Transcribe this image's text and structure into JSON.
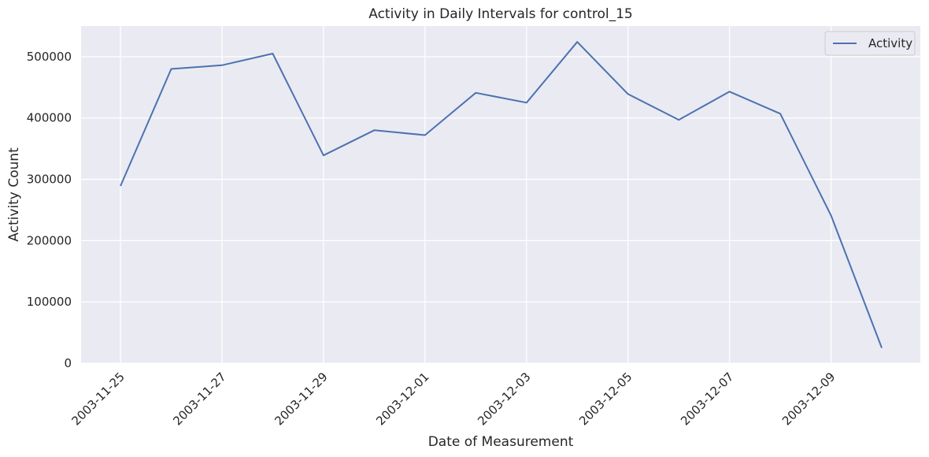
{
  "chart_data": {
    "type": "line",
    "title": "Activity in Daily Intervals for control_15",
    "xlabel": "Date of Measurement",
    "ylabel": "Activity Count",
    "x": [
      "2003-11-25",
      "2003-11-26",
      "2003-11-27",
      "2003-11-28",
      "2003-11-29",
      "2003-11-30",
      "2003-12-01",
      "2003-12-02",
      "2003-12-03",
      "2003-12-04",
      "2003-12-05",
      "2003-12-06",
      "2003-12-07",
      "2003-12-08",
      "2003-12-09",
      "2003-12-10"
    ],
    "series": [
      {
        "name": "Activity",
        "color": "#4c72b0",
        "values": [
          289000,
          480000,
          486000,
          505000,
          339000,
          380000,
          372000,
          441000,
          425000,
          524000,
          439000,
          397000,
          443000,
          407000,
          241000,
          25000
        ]
      }
    ],
    "x_ticks": [
      "2003-11-25",
      "2003-11-27",
      "2003-11-29",
      "2003-12-01",
      "2003-12-03",
      "2003-12-05",
      "2003-12-07",
      "2003-12-09"
    ],
    "y_ticks": [
      "0",
      "100000",
      "200000",
      "300000",
      "400000",
      "500000"
    ],
    "ylim": [
      0,
      550000
    ],
    "grid": true,
    "legend_position": "top-right",
    "colors": {
      "plot_background": "#eaeaf2",
      "grid": "#ffffff"
    }
  }
}
